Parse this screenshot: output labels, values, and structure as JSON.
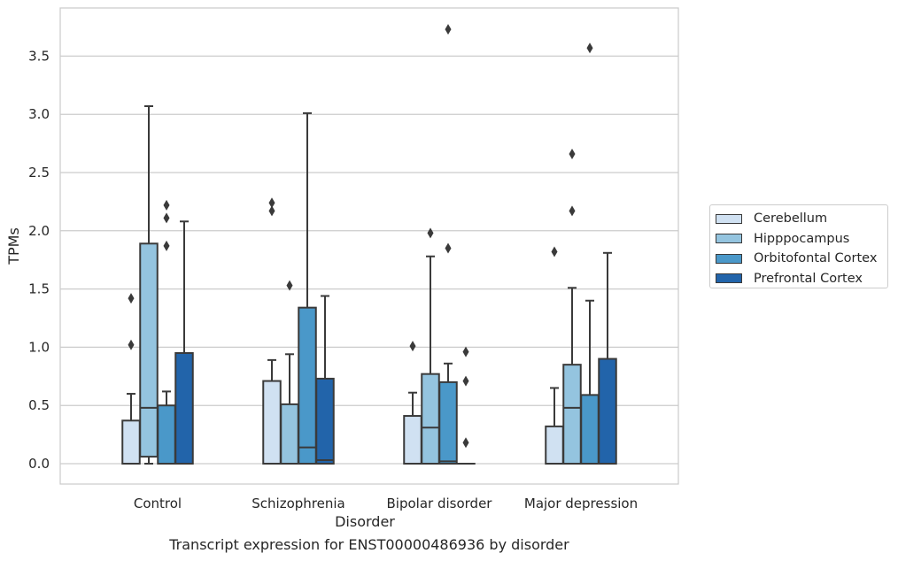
{
  "chart_data": {
    "type": "box",
    "title": "Transcript expression for ENST00000486936 by disorder",
    "xlabel": "Disorder",
    "ylabel": "TPMs",
    "ylim": [
      -0.18,
      3.9
    ],
    "yticks": [
      "0.0",
      "0.5",
      "1.0",
      "1.5",
      "2.0",
      "2.5",
      "3.0",
      "3.5"
    ],
    "grid": "horizontal",
    "legend_position": "right",
    "categories": [
      "Control",
      "Schizophrenia",
      "Bipolar disorder",
      "Major depression"
    ],
    "series": [
      {
        "name": "Cerebellum",
        "color": "#d0e1f2",
        "boxes": [
          {
            "whislo": 0.0,
            "q1": 0.0,
            "med": 0.0,
            "q3": 0.37,
            "whishi": 0.6,
            "fliers": [
              1.02,
              1.42
            ]
          },
          {
            "whislo": 0.0,
            "q1": 0.0,
            "med": 0.0,
            "q3": 0.71,
            "whishi": 0.89,
            "fliers": [
              2.17,
              2.24
            ]
          },
          {
            "whislo": 0.0,
            "q1": 0.0,
            "med": 0.0,
            "q3": 0.41,
            "whishi": 0.61,
            "fliers": [
              1.01
            ]
          },
          {
            "whislo": 0.0,
            "q1": 0.0,
            "med": 0.0,
            "q3": 0.32,
            "whishi": 0.65,
            "fliers": [
              1.82
            ]
          }
        ]
      },
      {
        "name": "Hipppocampus",
        "color": "#94c4df",
        "boxes": [
          {
            "whislo": 0.0,
            "q1": 0.06,
            "med": 0.48,
            "q3": 1.89,
            "whishi": 3.07,
            "fliers": []
          },
          {
            "whislo": 0.0,
            "q1": 0.0,
            "med": 0.0,
            "q3": 0.51,
            "whishi": 0.94,
            "fliers": [
              1.53
            ]
          },
          {
            "whislo": 0.0,
            "q1": 0.0,
            "med": 0.31,
            "q3": 0.77,
            "whishi": 1.78,
            "fliers": [
              1.98
            ]
          },
          {
            "whislo": 0.0,
            "q1": 0.0,
            "med": 0.48,
            "q3": 0.85,
            "whishi": 1.51,
            "fliers": [
              2.17,
              2.66
            ]
          }
        ]
      },
      {
        "name": "Orbitofontal Cortex",
        "color": "#4a98c9",
        "boxes": [
          {
            "whislo": 0.0,
            "q1": 0.0,
            "med": 0.0,
            "q3": 0.5,
            "whishi": 0.62,
            "fliers": [
              1.87,
              2.11,
              2.22
            ]
          },
          {
            "whislo": 0.0,
            "q1": 0.0,
            "med": 0.14,
            "q3": 1.34,
            "whishi": 3.01,
            "fliers": []
          },
          {
            "whislo": 0.0,
            "q1": 0.0,
            "med": 0.02,
            "q3": 0.7,
            "whishi": 0.86,
            "fliers": [
              1.85,
              3.73
            ]
          },
          {
            "whislo": 0.0,
            "q1": 0.0,
            "med": 0.0,
            "q3": 0.59,
            "whishi": 1.4,
            "fliers": [
              3.57
            ]
          }
        ]
      },
      {
        "name": "Prefrontal Cortex",
        "color": "#2264aa",
        "boxes": [
          {
            "whislo": 0.0,
            "q1": 0.0,
            "med": 0.0,
            "q3": 0.95,
            "whishi": 2.08,
            "fliers": []
          },
          {
            "whislo": 0.0,
            "q1": 0.0,
            "med": 0.03,
            "q3": 0.73,
            "whishi": 1.44,
            "fliers": []
          },
          {
            "whislo": 0.0,
            "q1": 0.0,
            "med": 0.0,
            "q3": 0.0,
            "whishi": 0.0,
            "fliers": [
              0.18,
              0.71,
              0.96
            ]
          },
          {
            "whislo": 0.0,
            "q1": 0.0,
            "med": 0.0,
            "q3": 0.9,
            "whishi": 1.81,
            "fliers": []
          }
        ]
      }
    ]
  }
}
